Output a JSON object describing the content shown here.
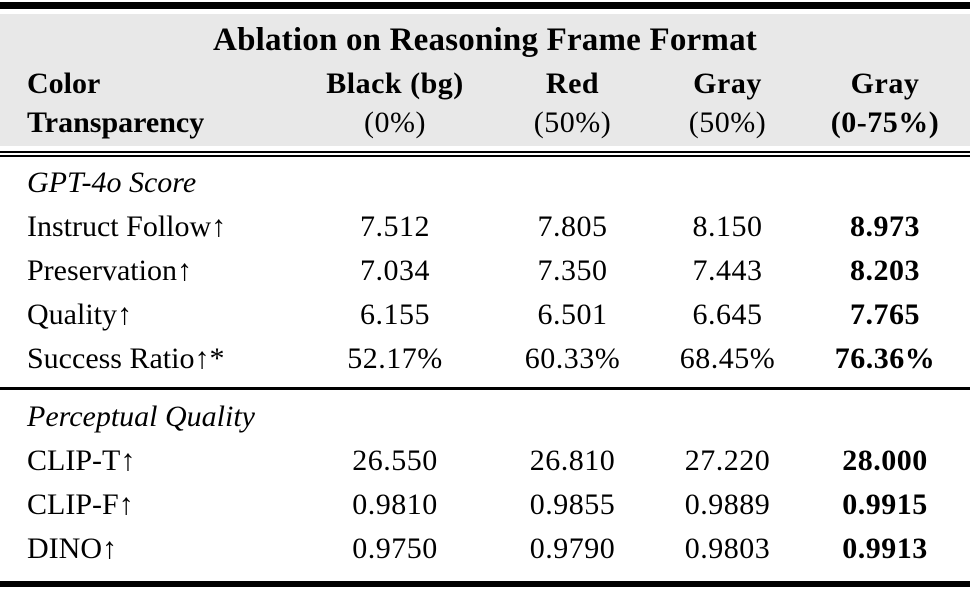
{
  "colors": {
    "header_background": "#e8e8e8",
    "rule": "#000000",
    "text": "#000000",
    "page_background": "#ffffff"
  },
  "table": {
    "title": "Ablation on Reasoning Frame Format",
    "header": {
      "color_row": {
        "label": "Color",
        "values": [
          "Black (bg)",
          "Red",
          "Gray",
          "Gray"
        ]
      },
      "transparency_row": {
        "label": "Transparency",
        "values": [
          "(0%)",
          "(50%)",
          "(50%)",
          "(0-75%)"
        ]
      },
      "emphasized_column_index": 3
    },
    "sections": [
      {
        "heading": "GPT-4o Score",
        "rows": [
          {
            "label": "Instruct Follow↑",
            "values": [
              "7.512",
              "7.805",
              "8.150",
              "8.973"
            ]
          },
          {
            "label": "Preservation↑",
            "values": [
              "7.034",
              "7.350",
              "7.443",
              "8.203"
            ]
          },
          {
            "label": "Quality↑",
            "values": [
              "6.155",
              "6.501",
              "6.645",
              "7.765"
            ]
          },
          {
            "label": "Success Ratio↑*",
            "values": [
              "52.17%",
              "60.33%",
              "68.45%",
              "76.36%"
            ]
          }
        ]
      },
      {
        "heading": "Perceptual Quality",
        "rows": [
          {
            "label": "CLIP-T↑",
            "values": [
              "26.550",
              "26.810",
              "27.220",
              "28.000"
            ]
          },
          {
            "label": "CLIP-F↑",
            "values": [
              "0.9810",
              "0.9855",
              "0.9889",
              "0.9915"
            ]
          },
          {
            "label": "DINO↑",
            "values": [
              "0.9750",
              "0.9790",
              "0.9803",
              "0.9913"
            ]
          }
        ]
      }
    ]
  }
}
